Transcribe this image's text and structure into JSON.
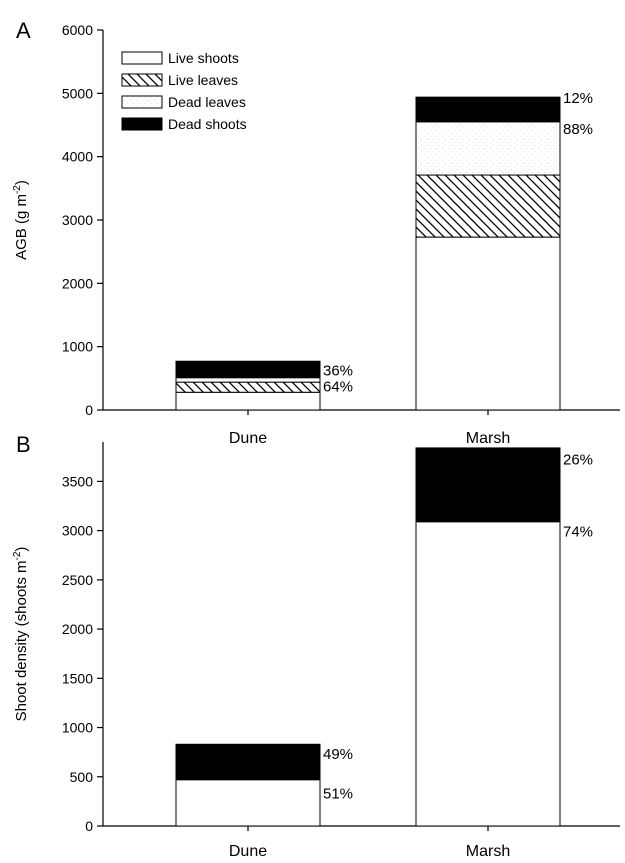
{
  "chart_data": [
    {
      "panel": "A",
      "type": "bar",
      "stacked": true,
      "categories": [
        "Dune",
        "Marsh"
      ],
      "ylabel": "AGB (g m",
      "ylabel_sup": "-2",
      "ylabel_end": ")",
      "ylim": [
        0,
        6000
      ],
      "yticks": [
        0,
        1000,
        2000,
        3000,
        4000,
        5000,
        6000
      ],
      "legend_position": "top-left",
      "series": [
        {
          "name": "Live shoots",
          "pattern": "white",
          "values": [
            280,
            2730
          ]
        },
        {
          "name": "Live leaves",
          "pattern": "hatch",
          "values": [
            160,
            980
          ]
        },
        {
          "name": "Dead leaves",
          "pattern": "stipple",
          "values": [
            70,
            840
          ]
        },
        {
          "name": "Dead shoots",
          "pattern": "black",
          "values": [
            260,
            390
          ]
        }
      ],
      "annotations": [
        {
          "category": "Dune",
          "text": "36%",
          "anchor_value": 620
        },
        {
          "category": "Dune",
          "text": "64%",
          "anchor_value": 370
        },
        {
          "category": "Marsh",
          "text": "12%",
          "anchor_value": 4930
        },
        {
          "category": "Marsh",
          "text": "88%",
          "anchor_value": 4440
        }
      ]
    },
    {
      "panel": "B",
      "type": "bar",
      "stacked": true,
      "categories": [
        "Dune",
        "Marsh"
      ],
      "ylabel": "Shoot density (shoots m",
      "ylabel_sup": "-2",
      "ylabel_end": ")",
      "ylim": [
        0,
        3900
      ],
      "yticks": [
        0,
        500,
        1000,
        1500,
        2000,
        2500,
        3000,
        3500
      ],
      "series": [
        {
          "pattern": "white",
          "values": [
            470,
            3090
          ]
        },
        {
          "pattern": "black",
          "values": [
            360,
            750
          ]
        }
      ],
      "annotations": [
        {
          "category": "Dune",
          "text": "49%",
          "anchor_value": 730
        },
        {
          "category": "Dune",
          "text": "51%",
          "anchor_value": 330
        },
        {
          "category": "Marsh",
          "text": "26%",
          "anchor_value": 3720
        },
        {
          "category": "Marsh",
          "text": "74%",
          "anchor_value": 2990
        }
      ]
    }
  ]
}
